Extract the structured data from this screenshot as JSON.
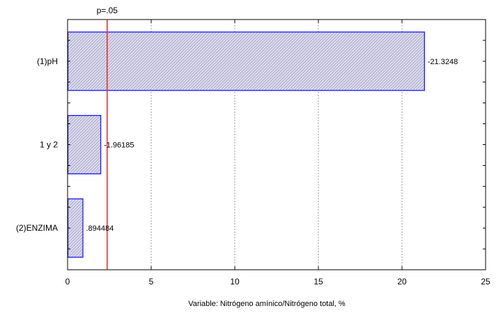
{
  "chart_data": {
    "type": "bar",
    "orientation": "horizontal",
    "categories": [
      "(1)pH",
      "1 y 2",
      "(2)ENZIMA"
    ],
    "values": [
      21.3248,
      1.96185,
      0.894484
    ],
    "value_labels": [
      "-21.3248",
      "-1.96185",
      ".894484"
    ],
    "xlabel": "Variable: Nitrógeno amínico/Nitrógeno total, %",
    "xlim": [
      0,
      25
    ],
    "xticks": [
      0,
      5,
      10,
      15,
      20,
      25
    ],
    "xtick_labels": [
      "0",
      "5",
      "10",
      "15",
      "20",
      "25"
    ],
    "reference_line": {
      "value": 2.3646,
      "label": "p=.05",
      "color": "#e8262b"
    },
    "bar_fill": "#c8c8e0",
    "bar_stroke": "#1a1aff",
    "grid": "vertical dotted"
  }
}
